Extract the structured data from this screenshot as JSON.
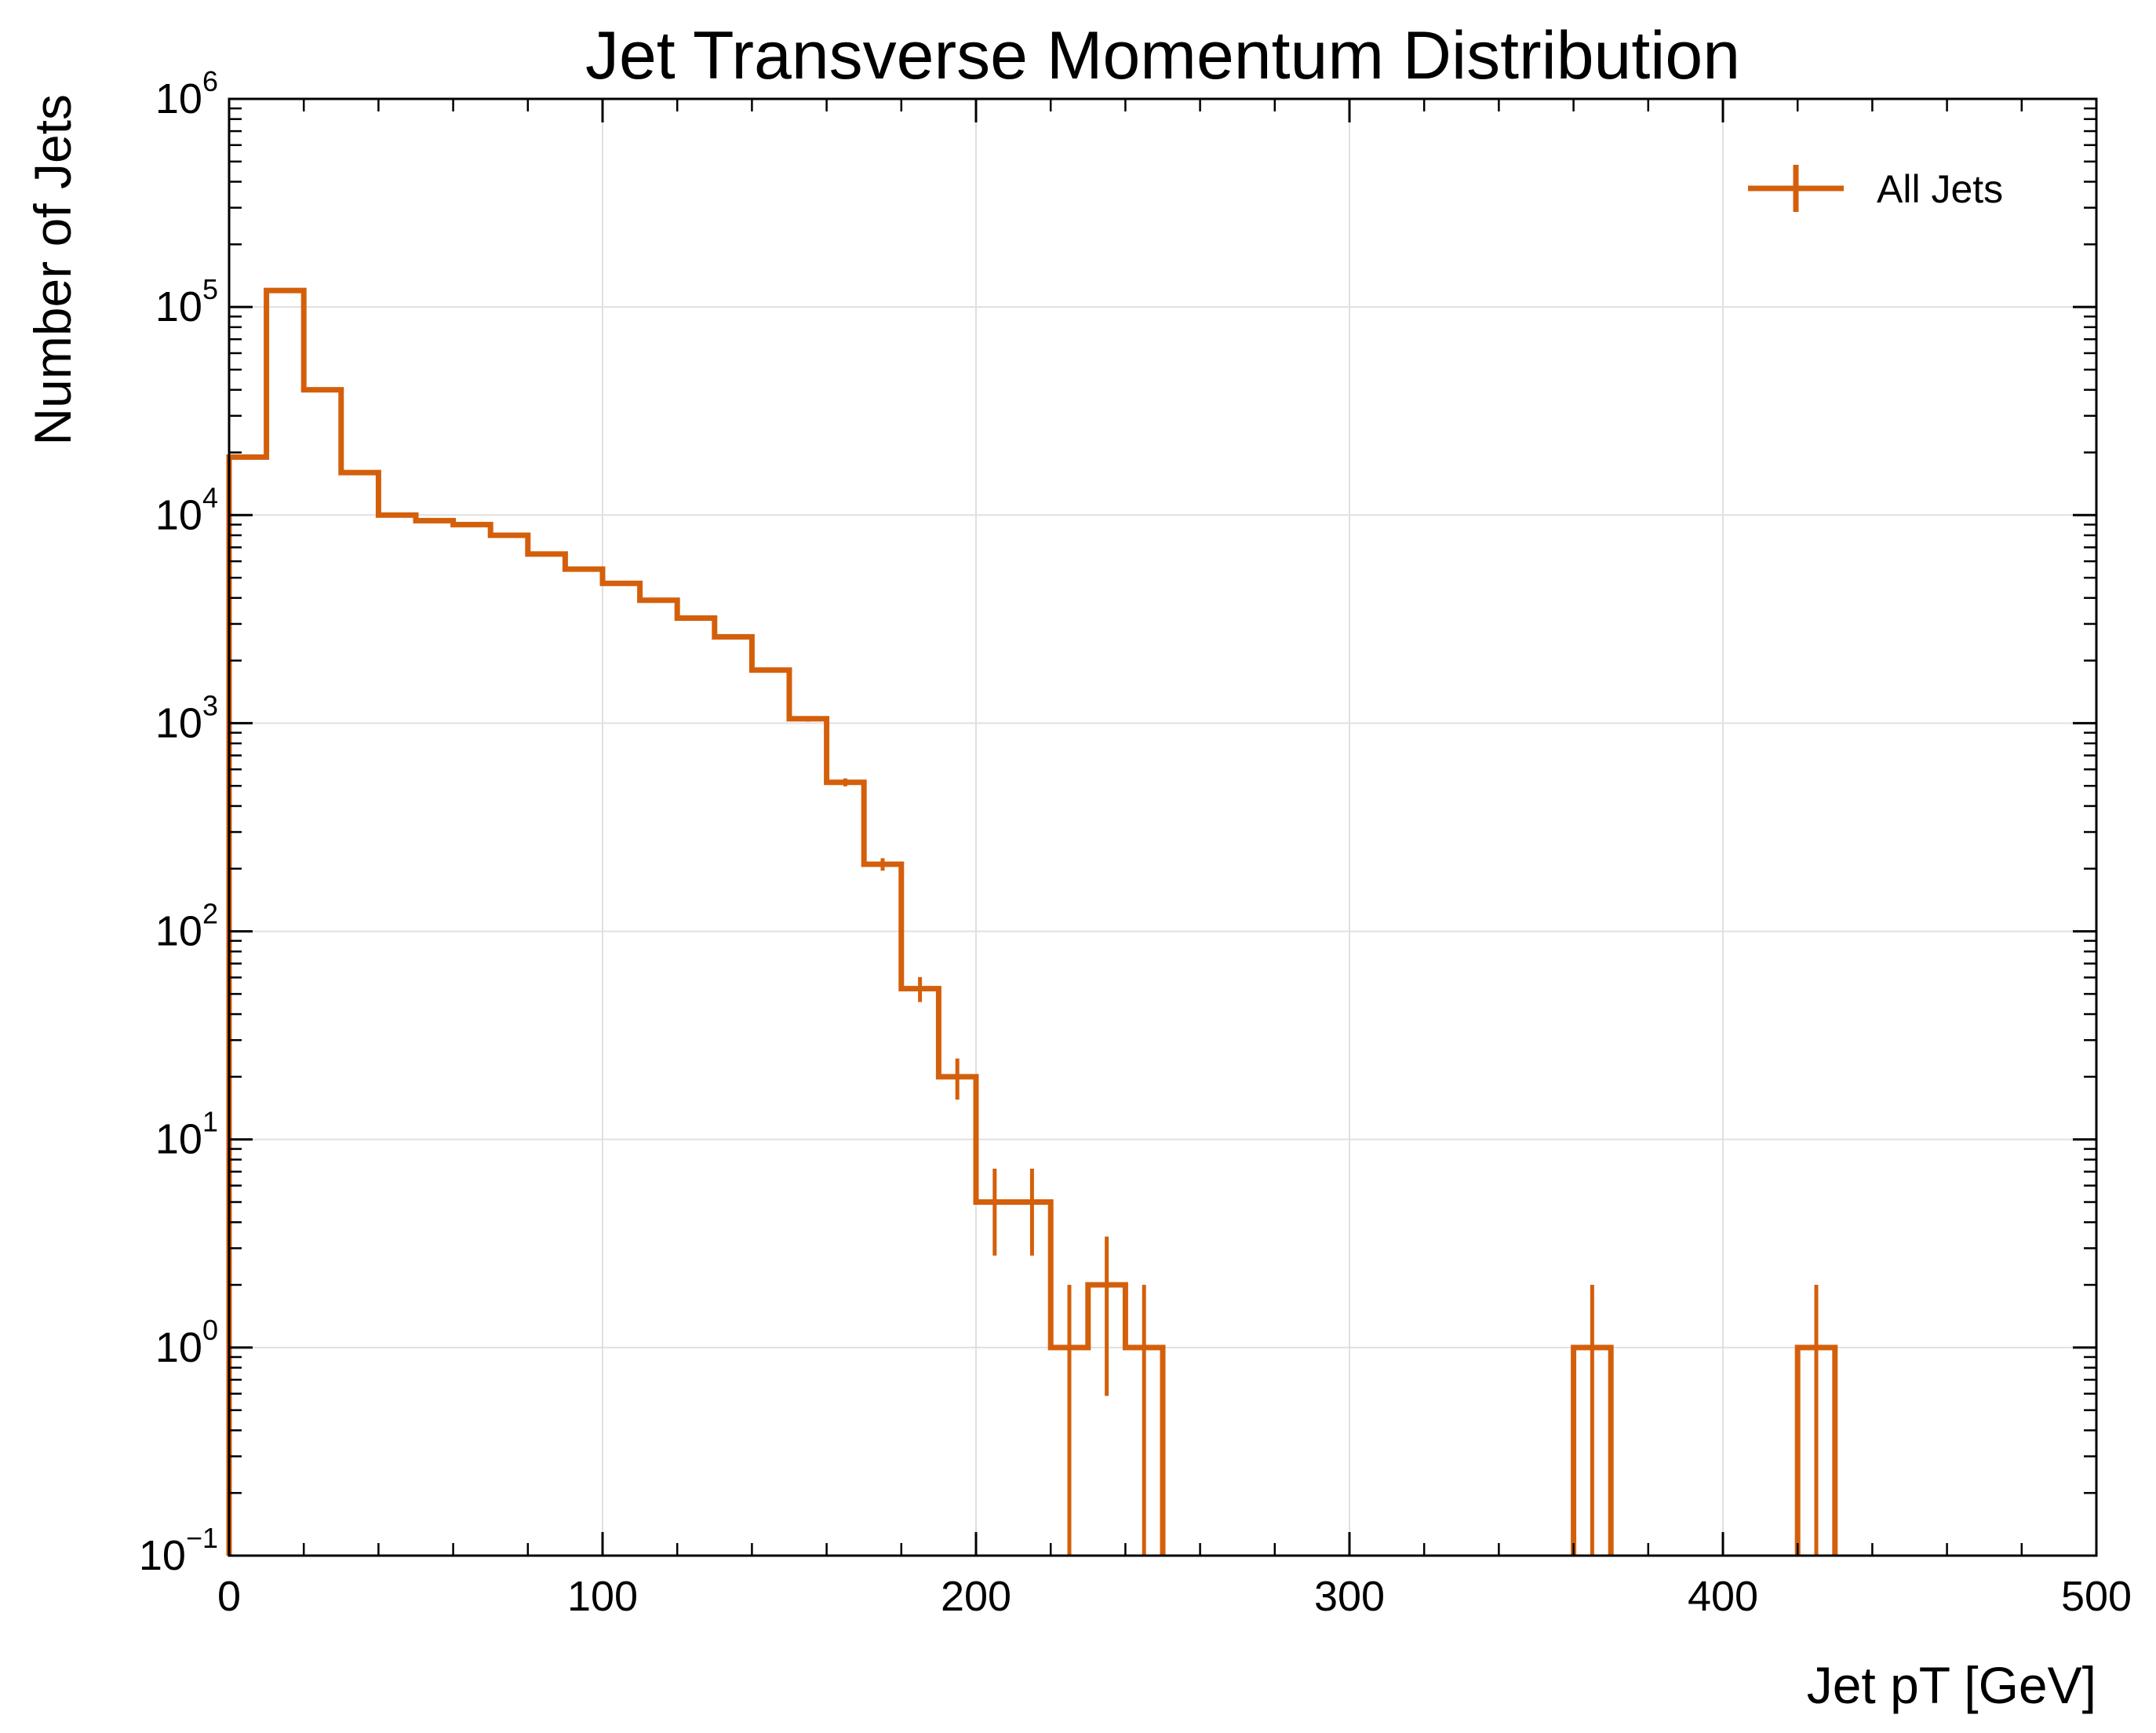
{
  "chart_data": {
    "type": "bar",
    "histogram": true,
    "title": "Jet Transverse Momentum Distribution",
    "xlabel": "Jet pT [GeV]",
    "ylabel": "Number of Jets",
    "xlim": [
      0,
      500
    ],
    "ylim": [
      0.1,
      1000000
    ],
    "yscale": "log",
    "grid": true,
    "legend_position": "top-right",
    "x_ticks": [
      0,
      100,
      200,
      300,
      400,
      500
    ],
    "y_ticks": [
      {
        "base": "10",
        "exp": "−1",
        "value": 0.1
      },
      {
        "base": "10",
        "exp": "0",
        "value": 1
      },
      {
        "base": "10",
        "exp": "1",
        "value": 10
      },
      {
        "base": "10",
        "exp": "2",
        "value": 100
      },
      {
        "base": "10",
        "exp": "3",
        "value": 1000
      },
      {
        "base": "10",
        "exp": "4",
        "value": 10000
      },
      {
        "base": "10",
        "exp": "5",
        "value": 100000
      },
      {
        "base": "10",
        "exp": "6",
        "value": 1000000
      }
    ],
    "bin_edges": [
      0,
      10,
      20,
      30,
      40,
      50,
      60,
      70,
      80,
      90,
      100,
      110,
      120,
      130,
      140,
      150,
      160,
      170,
      180,
      190,
      200,
      210,
      220,
      230,
      240,
      250,
      260,
      270,
      280,
      290,
      300,
      310,
      320,
      330,
      340,
      350,
      360,
      370,
      380,
      390,
      400,
      410,
      420,
      430,
      440,
      450,
      460,
      470,
      480,
      490,
      500
    ],
    "series": [
      {
        "name": "All Jets",
        "color": "#d45f0b",
        "values": [
          19000,
          120000,
          40000,
          16000,
          10000,
          9400,
          9000,
          8000,
          6500,
          5500,
          4700,
          3900,
          3200,
          2600,
          1800,
          1050,
          520,
          210,
          53,
          20,
          5,
          5,
          1,
          2,
          1,
          0,
          0,
          0,
          0,
          0,
          0,
          0,
          0,
          0,
          0,
          0,
          1,
          0,
          0,
          0,
          0,
          0,
          1,
          0,
          0,
          0,
          0,
          0,
          0,
          0
        ]
      }
    ]
  }
}
